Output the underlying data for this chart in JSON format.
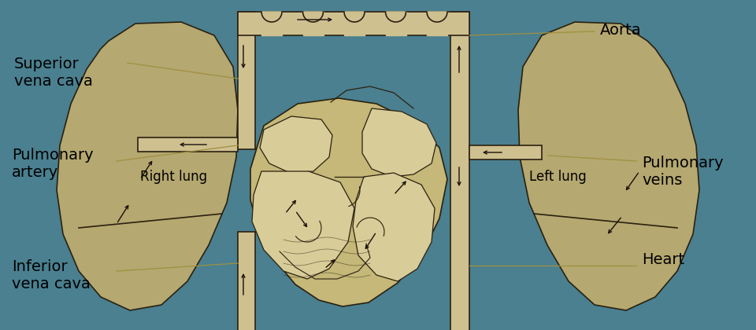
{
  "bg_color": "#4a8090",
  "lung_fill": "#b5a870",
  "lung_edge": "#2a2010",
  "vessel_fill": "#cfc090",
  "vessel_edge": "#2a2010",
  "heart_fill": "#c5b878",
  "inner_fill": "#d8cc98",
  "line_color": "#1a1008",
  "text_color": "#000000",
  "annot_line_color": "#a09040",
  "labels": {
    "superior_vena_cava": "Superior\nvena cava",
    "pulmonary_artery": "Pulmonary\nartery",
    "inferior_vena_cava": "Inferior\nvena cava",
    "right_lung": "Right lung",
    "left_lung": "Left lung",
    "aorta": "Aorta",
    "pulmonary_veins": "Pulmonary\nveins",
    "heart": "Heart"
  },
  "figsize": [
    9.6,
    4.2
  ],
  "dpi": 100
}
